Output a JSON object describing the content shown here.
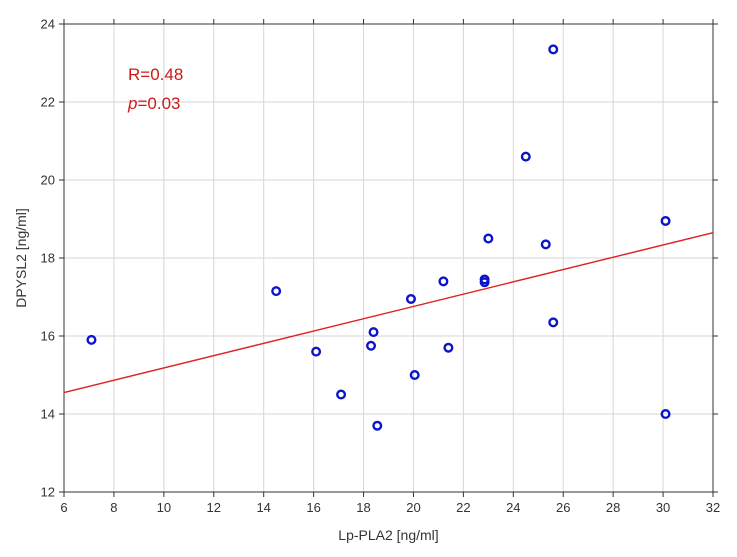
{
  "chart_data": {
    "type": "scatter",
    "title": "",
    "xlabel": "Lp-PLA2 [ng/ml]",
    "ylabel": "DPYSL2 [ng/ml]",
    "xlim": [
      6,
      32
    ],
    "ylim": [
      12,
      24
    ],
    "x_ticks": [
      "6",
      "8",
      "10",
      "12",
      "14",
      "16",
      "18",
      "20",
      "22",
      "24",
      "26",
      "28",
      "30",
      "32"
    ],
    "y_ticks": [
      "12",
      "14",
      "16",
      "18",
      "20",
      "22",
      "24"
    ],
    "grid": true,
    "points": [
      {
        "x": 7.1,
        "y": 15.9
      },
      {
        "x": 14.5,
        "y": 17.15
      },
      {
        "x": 16.1,
        "y": 15.6
      },
      {
        "x": 17.1,
        "y": 14.5
      },
      {
        "x": 18.3,
        "y": 15.75
      },
      {
        "x": 18.4,
        "y": 16.1
      },
      {
        "x": 18.55,
        "y": 13.7
      },
      {
        "x": 19.9,
        "y": 16.95
      },
      {
        "x": 20.05,
        "y": 15.0
      },
      {
        "x": 21.2,
        "y": 17.4
      },
      {
        "x": 21.4,
        "y": 15.7
      },
      {
        "x": 22.85,
        "y": 17.45
      },
      {
        "x": 22.85,
        "y": 17.38
      },
      {
        "x": 23.0,
        "y": 18.5
      },
      {
        "x": 24.5,
        "y": 20.6
      },
      {
        "x": 25.3,
        "y": 18.35
      },
      {
        "x": 25.6,
        "y": 23.35
      },
      {
        "x": 25.6,
        "y": 16.35
      },
      {
        "x": 30.1,
        "y": 18.95
      },
      {
        "x": 30.1,
        "y": 14.0
      }
    ],
    "regression_line": {
      "x": [
        6,
        32
      ],
      "y": [
        14.55,
        18.65
      ]
    },
    "annotations": {
      "r_text": "R=0.48",
      "p_italic": "p",
      "p_value": "=0.03"
    },
    "colors": {
      "points": "#0a14c8",
      "line": "#e02020",
      "annotation": "#d01818"
    }
  }
}
